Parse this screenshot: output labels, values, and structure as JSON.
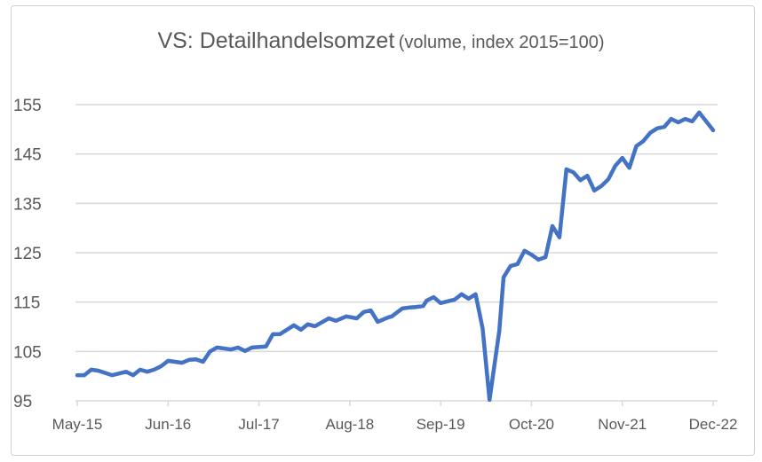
{
  "chart_data": {
    "type": "line",
    "title": "VS: Detailhandelsomzet",
    "subtitle": "(volume, index 2015=100)",
    "xlabel": "",
    "ylabel": "",
    "x_unit": "months since May-15",
    "xlim": [
      0,
      91
    ],
    "ylim": [
      95,
      155
    ],
    "yticks": [
      95,
      105,
      115,
      125,
      135,
      145,
      155
    ],
    "ytick_labels": [
      "95",
      "105",
      "115",
      "125",
      "135",
      "145",
      "155"
    ],
    "xticks": [
      0,
      13,
      26,
      39,
      52,
      65,
      78,
      91
    ],
    "xtick_labels": [
      "May-15",
      "Jun-16",
      "Jul-17",
      "Aug-18",
      "Sep-19",
      "Oct-20",
      "Nov-21",
      "Dec-22"
    ],
    "grid": true,
    "legend": "none",
    "color": "#4472C4",
    "series": [
      {
        "name": "Detailhandelsomzet",
        "x": [
          0,
          1,
          2,
          3,
          5,
          7,
          8,
          9,
          10,
          11,
          12,
          13,
          15,
          16,
          17,
          18,
          19,
          20,
          22,
          23,
          24,
          25,
          27,
          28,
          29,
          31,
          32,
          33,
          34,
          36,
          37,
          38.5,
          40,
          41,
          42,
          43,
          44.5,
          45,
          46.5,
          47.5,
          48.5,
          49.5,
          50,
          51,
          52,
          54,
          55,
          56,
          57,
          58,
          59,
          60.4,
          61,
          62,
          63,
          64,
          65,
          66,
          67,
          68,
          69,
          70,
          71,
          72,
          73,
          74,
          75,
          76,
          77,
          78,
          79,
          80,
          81,
          82,
          83,
          84,
          85,
          86,
          87,
          88,
          89,
          91
        ],
        "y": [
          100.2,
          100.2,
          101.3,
          101.1,
          100.2,
          100.9,
          100.2,
          101.3,
          100.9,
          101.3,
          102.0,
          103.1,
          102.7,
          103.3,
          103.4,
          102.9,
          105.0,
          105.8,
          105.4,
          105.8,
          105.1,
          105.8,
          106.0,
          108.5,
          108.5,
          110.3,
          109.4,
          110.5,
          110.1,
          111.7,
          111.2,
          112.1,
          111.7,
          113.0,
          113.3,
          111.0,
          111.9,
          112.1,
          113.7,
          113.9,
          114.0,
          114.2,
          115.3,
          116.0,
          114.8,
          115.5,
          116.6,
          115.7,
          116.6,
          109.7,
          95.2,
          109.2,
          120.0,
          122.3,
          122.7,
          125.4,
          124.6,
          123.6,
          124.1,
          130.4,
          128.1,
          141.9,
          141.3,
          139.7,
          140.6,
          137.6,
          138.5,
          139.9,
          142.6,
          144.2,
          142.2,
          146.6,
          147.6,
          149.3,
          150.2,
          150.5,
          152.1,
          151.4,
          152.1,
          151.6,
          153.4,
          149.8
        ]
      }
    ]
  }
}
